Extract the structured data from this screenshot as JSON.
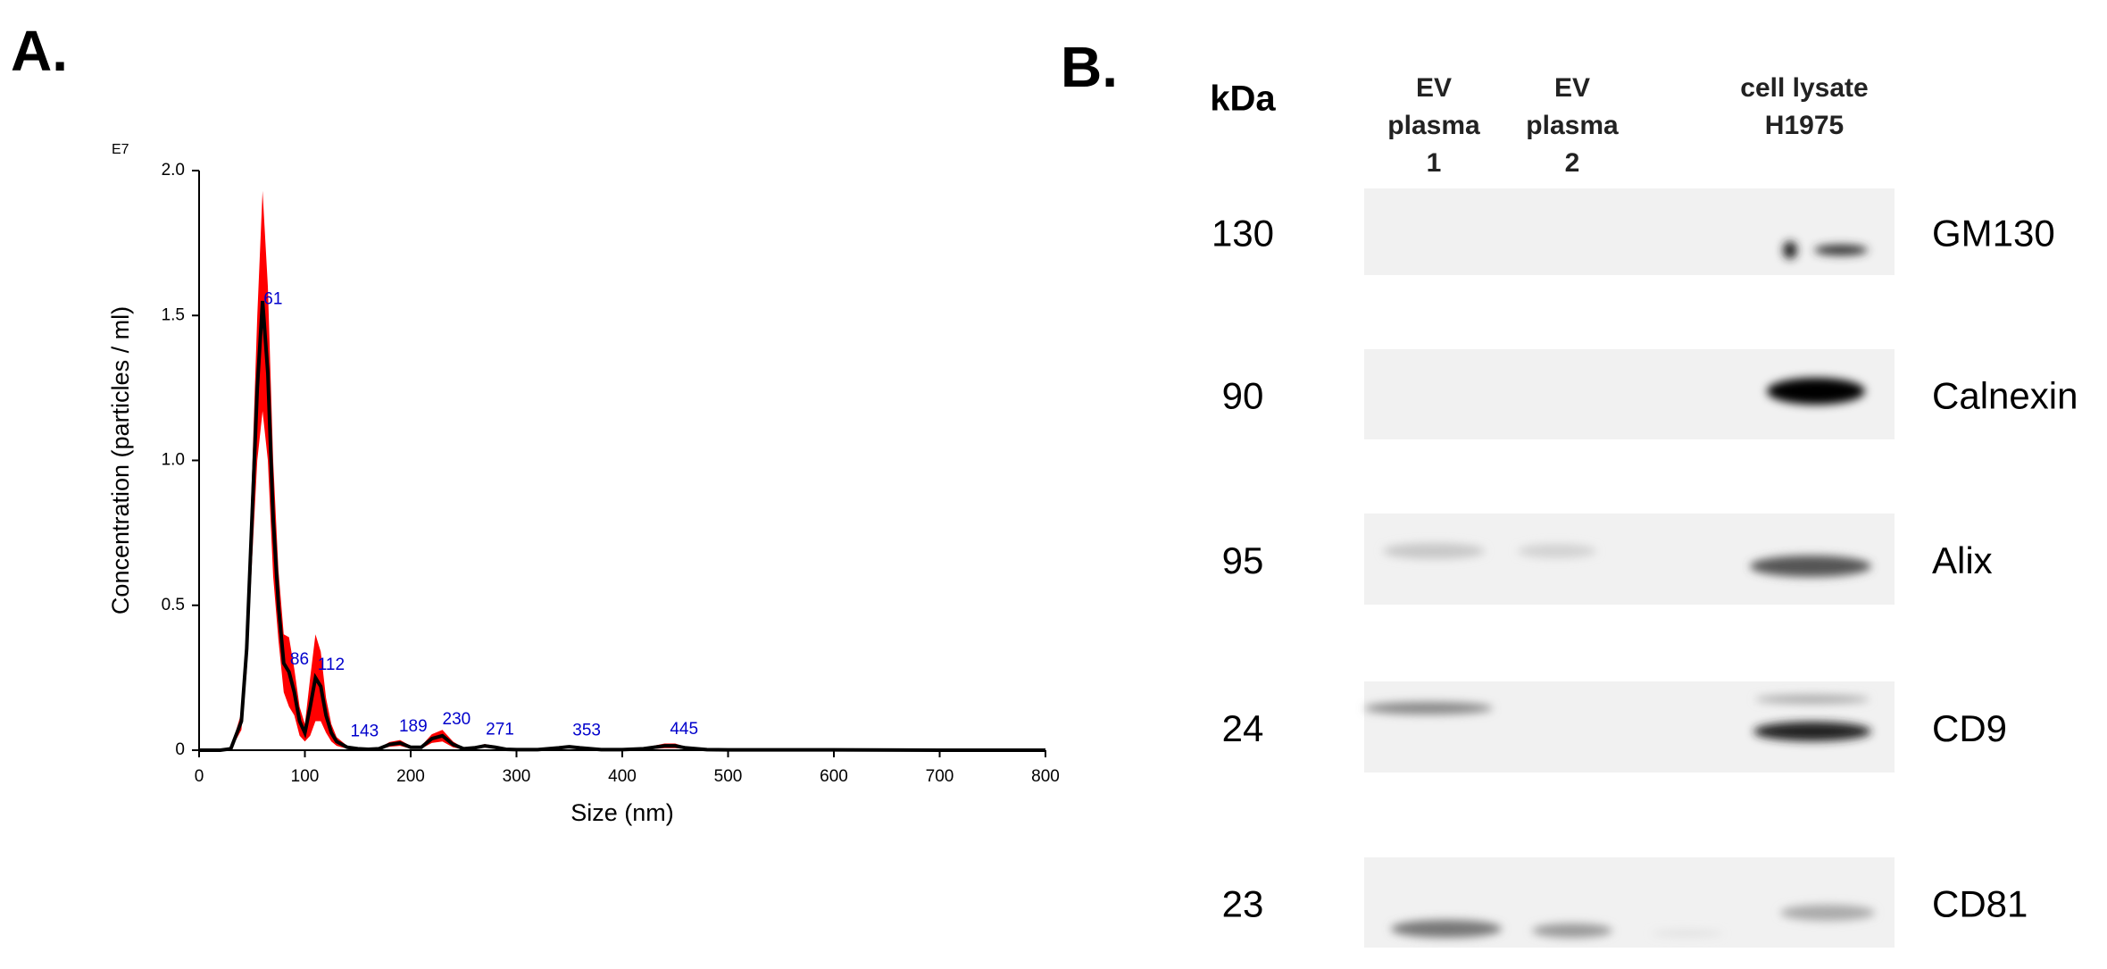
{
  "panel_labels": [
    "A.",
    "B."
  ],
  "chart_data": {
    "type": "line",
    "x_label": "Size (nm)",
    "y_label": "Concentration (particles / ml)",
    "y_multiplier": "E7",
    "x": [
      0,
      10,
      20,
      30,
      40,
      45,
      50,
      55,
      60,
      65,
      70,
      75,
      80,
      85,
      90,
      95,
      100,
      105,
      110,
      115,
      120,
      125,
      130,
      140,
      150,
      160,
      170,
      180,
      190,
      200,
      210,
      220,
      230,
      240,
      250,
      260,
      270,
      280,
      290,
      300,
      320,
      340,
      350,
      360,
      380,
      400,
      420,
      440,
      450,
      460,
      480,
      500,
      550,
      600,
      700,
      800
    ],
    "series": [
      {
        "color": "#000000",
        "error_color": "#ff0000",
        "values": [
          0,
          0,
          0,
          0.005,
          0.1,
          0.35,
          0.8,
          1.25,
          1.55,
          1.3,
          0.8,
          0.5,
          0.3,
          0.27,
          0.2,
          0.1,
          0.06,
          0.15,
          0.25,
          0.22,
          0.12,
          0.06,
          0.03,
          0.01,
          0.005,
          0.003,
          0.005,
          0.02,
          0.025,
          0.01,
          0.01,
          0.04,
          0.05,
          0.02,
          0.005,
          0.008,
          0.015,
          0.01,
          0.003,
          0.002,
          0.002,
          0.008,
          0.012,
          0.008,
          0.002,
          0.002,
          0.005,
          0.015,
          0.015,
          0.008,
          0.002,
          0.001,
          0.001,
          0.001,
          0,
          0
        ],
        "error": [
          0,
          0,
          0,
          0.003,
          0.03,
          0.08,
          0.15,
          0.25,
          0.38,
          0.3,
          0.2,
          0.12,
          0.1,
          0.12,
          0.08,
          0.05,
          0.03,
          0.1,
          0.15,
          0.12,
          0.06,
          0.03,
          0.015,
          0.005,
          0.003,
          0.002,
          0.003,
          0.008,
          0.01,
          0.005,
          0.005,
          0.015,
          0.02,
          0.01,
          0.003,
          0.004,
          0.006,
          0.005,
          0.002,
          0.001,
          0.001,
          0.004,
          0.005,
          0.004,
          0.001,
          0.001,
          0.003,
          0.008,
          0.008,
          0.004,
          0.001,
          0.001,
          0.001,
          0.001,
          0,
          0
        ]
      }
    ],
    "peak_labels": [
      61,
      86,
      112,
      143,
      189,
      230,
      271,
      353,
      445
    ],
    "xlim": [
      0,
      800
    ],
    "xticks": [
      0,
      100,
      200,
      300,
      400,
      500,
      600,
      700,
      800
    ],
    "ylim": [
      0,
      2
    ],
    "yticks": [
      0,
      0.5,
      {
        "value": 1,
        "label": "1.0"
      },
      1.5,
      {
        "value": 2,
        "label": "2.0"
      }
    ]
  },
  "blot": {
    "unit_header": "kDa",
    "lanes": [
      [
        "EV",
        "plasma",
        "1"
      ],
      [
        "EV",
        "plasma",
        "2"
      ],
      [
        "cell lysate",
        "H1975"
      ]
    ],
    "rows": [
      {
        "kda": 130,
        "protein": "GM130"
      },
      {
        "kda": 90,
        "protein": "Calnexin"
      },
      {
        "kda": 95,
        "protein": "Alix"
      },
      {
        "kda": 24,
        "protein": "CD9"
      },
      {
        "kda": 23,
        "protein": "CD81"
      }
    ]
  }
}
